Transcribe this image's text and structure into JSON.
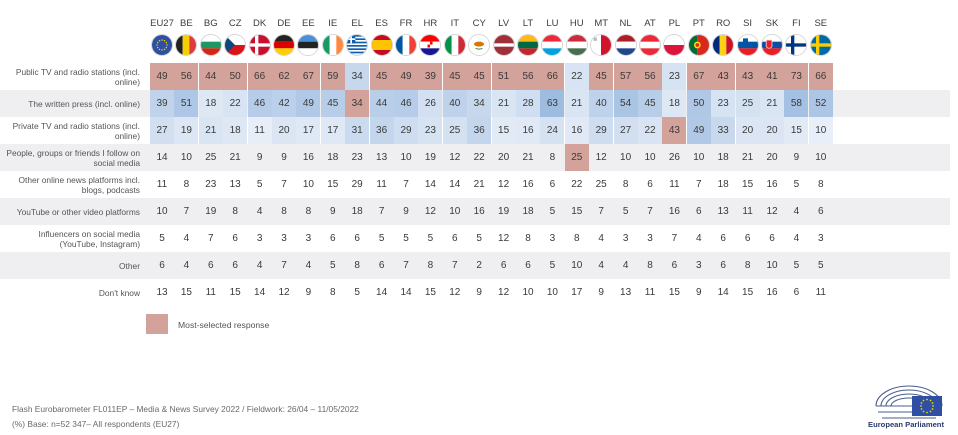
{
  "colors": {
    "most_selected": "#d3a29a",
    "blue_scale_high": "#8fb2dc",
    "blue_scale_low": "#f3f6fb",
    "label_text": "#555555"
  },
  "countries": [
    "EU27",
    "BE",
    "BG",
    "CZ",
    "DK",
    "DE",
    "EE",
    "IE",
    "EL",
    "ES",
    "FR",
    "HR",
    "IT",
    "CY",
    "LV",
    "LT",
    "LU",
    "HU",
    "MT",
    "NL",
    "AT",
    "PL",
    "PT",
    "RO",
    "SI",
    "SK",
    "FI",
    "SE"
  ],
  "chart_data": {
    "type": "heatmap",
    "title": "",
    "x_categories": [
      "EU27",
      "BE",
      "BG",
      "CZ",
      "DK",
      "DE",
      "EE",
      "IE",
      "EL",
      "ES",
      "FR",
      "HR",
      "IT",
      "CY",
      "LV",
      "LT",
      "LU",
      "HU",
      "MT",
      "NL",
      "AT",
      "PL",
      "PT",
      "RO",
      "SI",
      "SK",
      "FI",
      "SE"
    ],
    "rows": [
      {
        "label": "Public TV and radio stations (incl. online)",
        "values": [
          49,
          56,
          44,
          50,
          66,
          62,
          67,
          59,
          34,
          45,
          49,
          39,
          45,
          45,
          51,
          56,
          66,
          22,
          45,
          57,
          56,
          23,
          67,
          43,
          43,
          41,
          73,
          66
        ],
        "most_selected": [
          true,
          true,
          true,
          true,
          true,
          true,
          true,
          true,
          false,
          true,
          true,
          true,
          true,
          true,
          true,
          true,
          true,
          false,
          true,
          true,
          true,
          false,
          true,
          true,
          true,
          true,
          true,
          true
        ]
      },
      {
        "label": "The written press (incl. online)",
        "values": [
          39,
          51,
          18,
          22,
          46,
          42,
          49,
          45,
          34,
          44,
          46,
          26,
          40,
          34,
          21,
          28,
          63,
          21,
          40,
          54,
          45,
          18,
          50,
          23,
          25,
          21,
          58,
          52
        ],
        "most_selected": [
          false,
          false,
          false,
          false,
          false,
          false,
          false,
          false,
          true,
          false,
          false,
          false,
          false,
          false,
          false,
          false,
          false,
          false,
          false,
          false,
          false,
          false,
          false,
          false,
          false,
          false,
          false,
          false
        ]
      },
      {
        "label": "Private TV and radio stations (incl. online)",
        "values": [
          27,
          19,
          21,
          18,
          11,
          20,
          17,
          17,
          31,
          36,
          29,
          23,
          25,
          36,
          15,
          16,
          24,
          16,
          29,
          27,
          22,
          43,
          49,
          33,
          20,
          20,
          15,
          10
        ],
        "most_selected": [
          false,
          false,
          false,
          false,
          false,
          false,
          false,
          false,
          false,
          false,
          false,
          false,
          false,
          false,
          false,
          false,
          false,
          false,
          false,
          false,
          false,
          true,
          false,
          false,
          false,
          false,
          false,
          false
        ]
      },
      {
        "label": "People, groups or friends I follow on social media",
        "values": [
          14,
          10,
          25,
          21,
          9,
          9,
          16,
          18,
          23,
          13,
          10,
          19,
          12,
          22,
          20,
          21,
          8,
          25,
          12,
          10,
          10,
          26,
          10,
          18,
          21,
          20,
          9,
          10
        ],
        "most_selected": [
          false,
          false,
          false,
          false,
          false,
          false,
          false,
          false,
          false,
          false,
          false,
          false,
          false,
          false,
          false,
          false,
          false,
          true,
          false,
          false,
          false,
          false,
          false,
          false,
          false,
          false,
          false,
          false
        ]
      },
      {
        "label": "Other online news platforms incl. blogs, podcasts",
        "values": [
          11,
          8,
          23,
          13,
          5,
          7,
          10,
          15,
          29,
          11,
          7,
          14,
          14,
          21,
          12,
          16,
          6,
          22,
          25,
          8,
          6,
          11,
          7,
          18,
          15,
          16,
          5,
          8
        ],
        "most_selected": [
          false,
          false,
          false,
          false,
          false,
          false,
          false,
          false,
          false,
          false,
          false,
          false,
          false,
          false,
          false,
          false,
          false,
          false,
          false,
          false,
          false,
          false,
          false,
          false,
          false,
          false,
          false,
          false
        ]
      },
      {
        "label": "YouTube or other video platforms",
        "values": [
          10,
          7,
          19,
          8,
          4,
          8,
          8,
          9,
          18,
          7,
          9,
          12,
          10,
          16,
          19,
          18,
          5,
          15,
          7,
          5,
          7,
          16,
          6,
          13,
          11,
          12,
          4,
          6
        ],
        "most_selected": [
          false,
          false,
          false,
          false,
          false,
          false,
          false,
          false,
          false,
          false,
          false,
          false,
          false,
          false,
          false,
          false,
          false,
          false,
          false,
          false,
          false,
          false,
          false,
          false,
          false,
          false,
          false,
          false
        ]
      },
      {
        "label": "Influencers on social media (YouTube, Instagram)",
        "values": [
          5,
          4,
          7,
          6,
          3,
          3,
          3,
          6,
          6,
          5,
          5,
          5,
          6,
          5,
          12,
          8,
          3,
          8,
          4,
          3,
          3,
          7,
          4,
          6,
          6,
          6,
          4,
          3
        ],
        "most_selected": [
          false,
          false,
          false,
          false,
          false,
          false,
          false,
          false,
          false,
          false,
          false,
          false,
          false,
          false,
          false,
          false,
          false,
          false,
          false,
          false,
          false,
          false,
          false,
          false,
          false,
          false,
          false,
          false
        ]
      },
      {
        "label": "Other",
        "values": [
          6,
          4,
          6,
          6,
          4,
          7,
          4,
          5,
          8,
          6,
          7,
          8,
          7,
          2,
          6,
          6,
          5,
          10,
          4,
          4,
          8,
          6,
          3,
          6,
          8,
          10,
          5,
          5
        ],
        "most_selected": [
          false,
          false,
          false,
          false,
          false,
          false,
          false,
          false,
          false,
          false,
          false,
          false,
          false,
          false,
          false,
          false,
          false,
          false,
          false,
          false,
          false,
          false,
          false,
          false,
          false,
          false,
          false,
          false
        ]
      },
      {
        "label": "Don't know",
        "values": [
          13,
          15,
          11,
          15,
          14,
          12,
          9,
          8,
          5,
          14,
          14,
          15,
          12,
          9,
          12,
          10,
          10,
          17,
          9,
          13,
          11,
          15,
          9,
          14,
          15,
          16,
          6,
          11
        ],
        "most_selected": [
          false,
          false,
          false,
          false,
          false,
          false,
          false,
          false,
          false,
          false,
          false,
          false,
          false,
          false,
          false,
          false,
          false,
          false,
          false,
          false,
          false,
          false,
          false,
          false,
          false,
          false,
          false,
          false
        ]
      }
    ],
    "legend": "Most-selected response"
  },
  "footer": {
    "line1": "Flash Eurobarometer  FL011EP – Media & News Survey 2022  /  Fieldwork: 26/04 – 11/05/2022",
    "line2": "(%) Base: n=52 347– All respondents (EU27)"
  },
  "logo": {
    "name": "European Parliament"
  }
}
